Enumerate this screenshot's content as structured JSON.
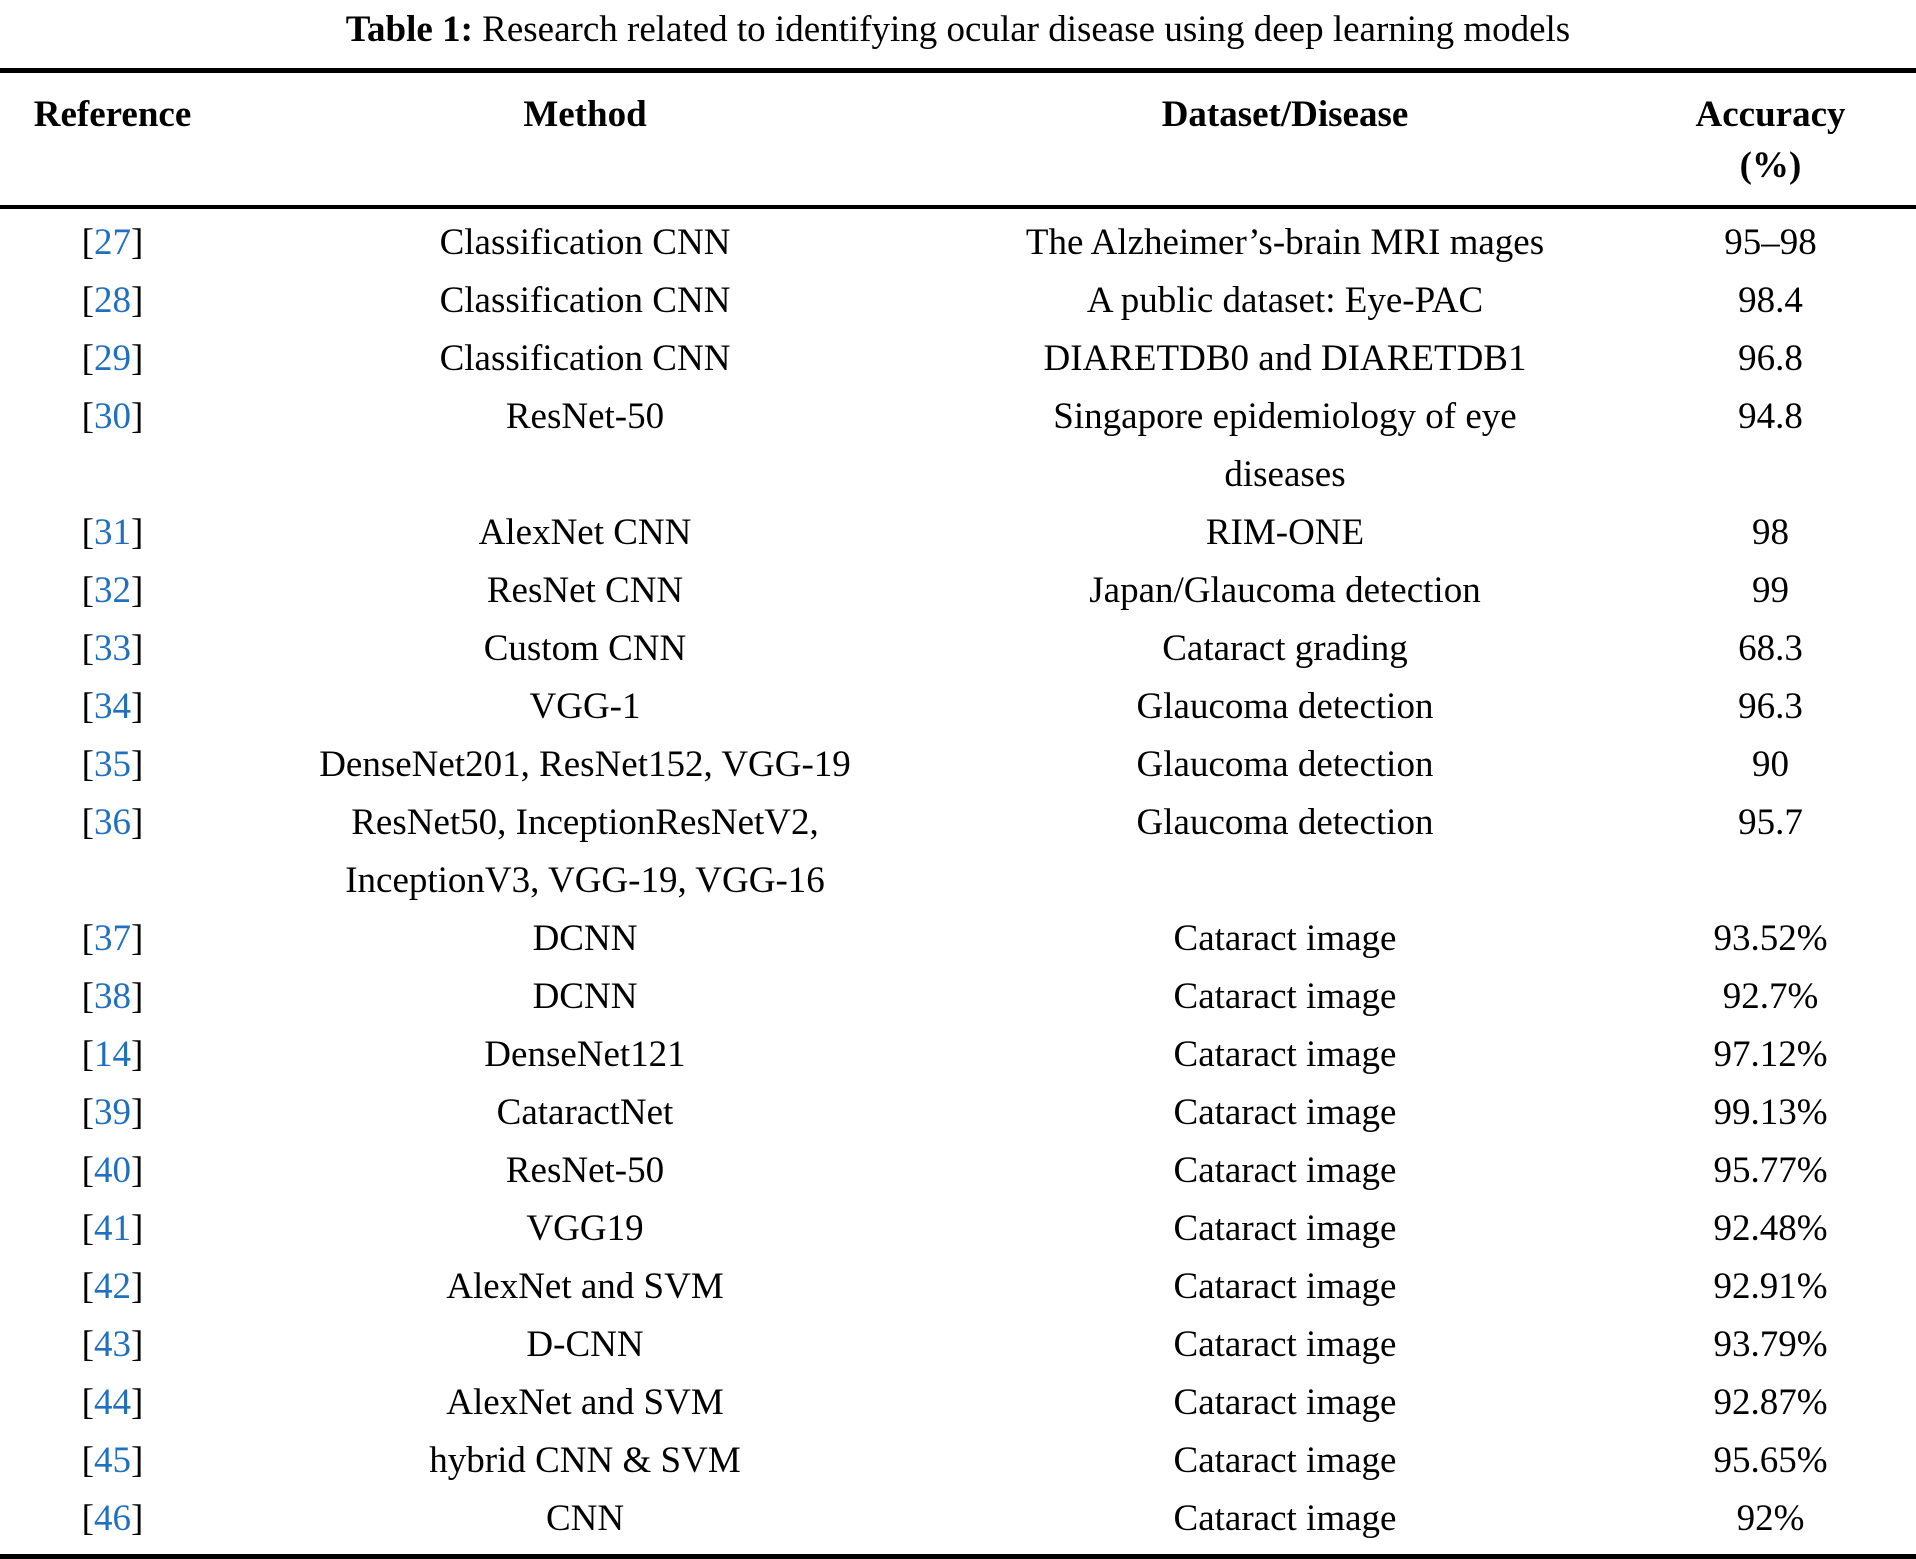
{
  "title": {
    "label": "Table 1:",
    "text": "Research related to identifying ocular disease using deep learning models"
  },
  "table": {
    "link_color": "#2170c0",
    "brackets": {
      "open": "[",
      "close": "]"
    },
    "columns": [
      {
        "label": "Reference"
      },
      {
        "label": "Method"
      },
      {
        "label": "Dataset/Disease"
      },
      {
        "label": "Accuracy",
        "sublabel": "(%)"
      }
    ],
    "rows": [
      {
        "ref": "27",
        "method": "Classification CNN",
        "dataset": "The Alzheimer’s-brain MRI mages",
        "accuracy": "95–98"
      },
      {
        "ref": "28",
        "method": "Classification CNN",
        "dataset": "A public dataset: Eye-PAC",
        "accuracy": "98.4"
      },
      {
        "ref": "29",
        "method": "Classification CNN",
        "dataset": "DIARETDB0 and DIARETDB1",
        "accuracy": "96.8"
      },
      {
        "ref": "30",
        "method": "ResNet-50",
        "dataset": "Singapore epidemiology of eye\ndiseases",
        "accuracy": "94.8"
      },
      {
        "ref": "31",
        "method": "AlexNet CNN",
        "dataset": "RIM-ONE",
        "accuracy": "98"
      },
      {
        "ref": "32",
        "method": "ResNet CNN",
        "dataset": "Japan/Glaucoma detection",
        "accuracy": "99"
      },
      {
        "ref": "33",
        "method": "Custom CNN",
        "dataset": "Cataract grading",
        "accuracy": "68.3"
      },
      {
        "ref": "34",
        "method": "VGG-1",
        "dataset": "Glaucoma detection",
        "accuracy": "96.3"
      },
      {
        "ref": "35",
        "method": "DenseNet201, ResNet152, VGG-19",
        "dataset": "Glaucoma detection",
        "accuracy": "90"
      },
      {
        "ref": "36",
        "method": "ResNet50, InceptionResNetV2,\nInceptionV3, VGG-19, VGG-16",
        "dataset": "Glaucoma detection",
        "accuracy": "95.7"
      },
      {
        "ref": "37",
        "method": "DCNN",
        "dataset": "Cataract image",
        "accuracy": "93.52%"
      },
      {
        "ref": "38",
        "method": "DCNN",
        "dataset": "Cataract image",
        "accuracy": "92.7%"
      },
      {
        "ref": "14",
        "method": "DenseNet121",
        "dataset": "Cataract image",
        "accuracy": "97.12%"
      },
      {
        "ref": "39",
        "method": "CataractNet",
        "dataset": "Cataract image",
        "accuracy": "99.13%"
      },
      {
        "ref": "40",
        "method": "ResNet-50",
        "dataset": "Cataract image",
        "accuracy": "95.77%"
      },
      {
        "ref": "41",
        "method": "VGG19",
        "dataset": "Cataract image",
        "accuracy": "92.48%"
      },
      {
        "ref": "42",
        "method": "AlexNet and SVM",
        "dataset": "Cataract image",
        "accuracy": "92.91%"
      },
      {
        "ref": "43",
        "method": "D-CNN",
        "dataset": "Cataract image",
        "accuracy": "93.79%"
      },
      {
        "ref": "44",
        "method": "AlexNet and SVM",
        "dataset": "Cataract image",
        "accuracy": "92.87%"
      },
      {
        "ref": "45",
        "method": "hybrid CNN & SVM",
        "dataset": "Cataract image",
        "accuracy": "95.65%"
      },
      {
        "ref": "46",
        "method": "CNN",
        "dataset": "Cataract image",
        "accuracy": "92%"
      }
    ]
  }
}
